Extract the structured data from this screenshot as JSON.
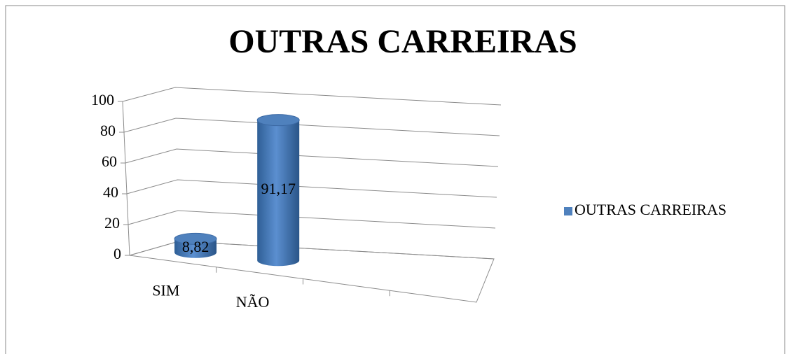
{
  "chart_data": {
    "type": "bar3d",
    "title": "OUTRAS CARREIRAS",
    "categories": [
      "SIM",
      "NÃO",
      null,
      null
    ],
    "series": [
      {
        "name": "OUTRAS CARREIRAS",
        "color": "#4f81bd",
        "values": [
          8.82,
          91.17,
          null,
          null
        ],
        "value_labels": [
          "8,82",
          "91,17",
          null,
          null
        ]
      }
    ],
    "ylim": [
      0,
      100
    ],
    "yticks": [
      0,
      20,
      40,
      60,
      80,
      100
    ],
    "grid": true,
    "legend": "right"
  }
}
